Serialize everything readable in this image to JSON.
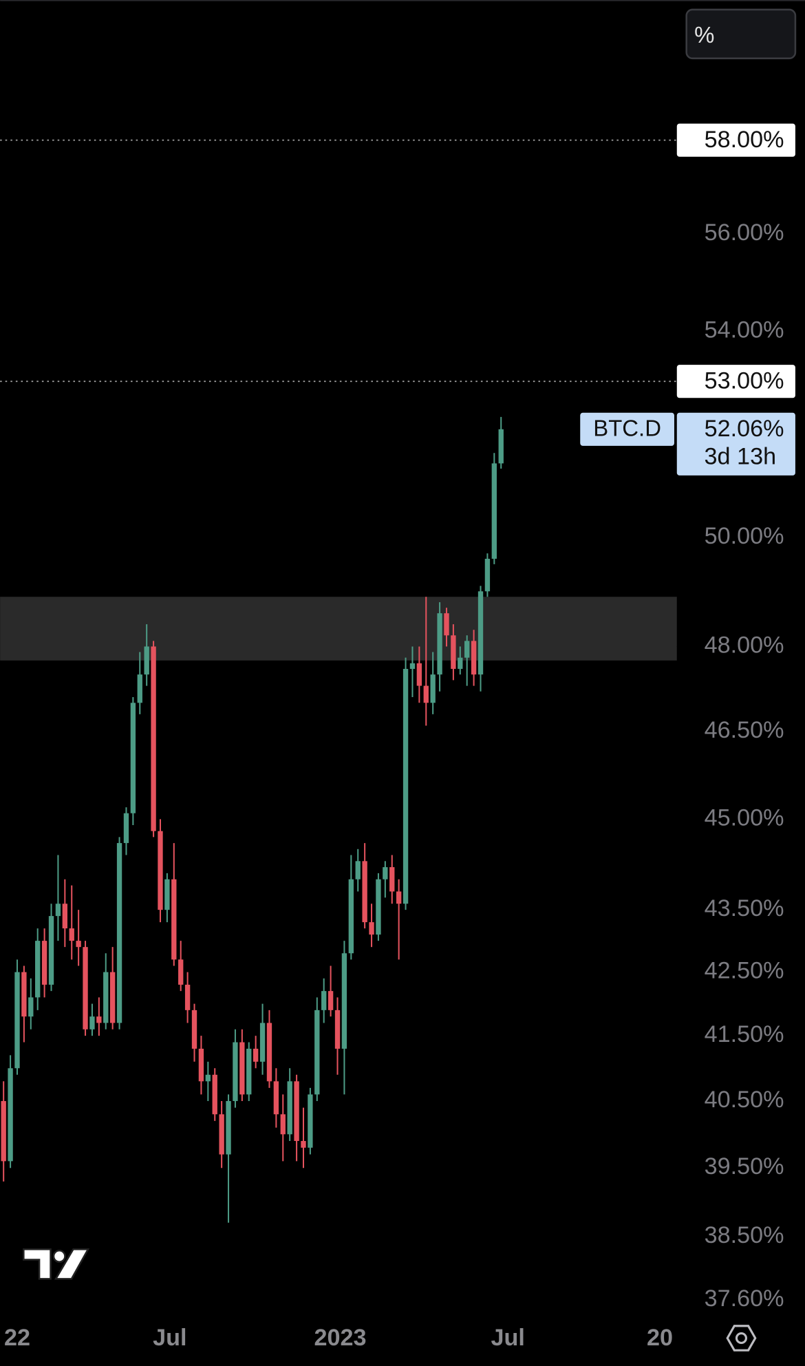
{
  "chart_data": {
    "type": "candlestick",
    "symbol": "BTC.D",
    "up_color": "#4d9c86",
    "down_color": "#e5535e",
    "log": true,
    "ylim": [
      37.32,
      61.12
    ],
    "yticks": [
      {
        "value": 56,
        "label": "56.00%"
      },
      {
        "value": 54,
        "label": "54.00%"
      },
      {
        "value": 50,
        "label": "50.00%"
      },
      {
        "value": 48,
        "label": "48.00%"
      },
      {
        "value": 46.5,
        "label": "46.50%"
      },
      {
        "value": 45,
        "label": "45.00%"
      },
      {
        "value": 43.5,
        "label": "43.50%"
      },
      {
        "value": 42.5,
        "label": "42.50%"
      },
      {
        "value": 41.5,
        "label": "41.50%"
      },
      {
        "value": 40.5,
        "label": "40.50%"
      },
      {
        "value": 39.5,
        "label": "39.50%"
      },
      {
        "value": 38.5,
        "label": "38.50%"
      },
      {
        "value": 37.6,
        "label": "37.60%"
      }
    ],
    "xlim": [
      -0.51,
      98.8
    ],
    "xticks": [
      {
        "value": 2.0,
        "label": "22"
      },
      {
        "value": 24.4,
        "label": "Jul"
      },
      {
        "value": 49.4,
        "label": "2023"
      },
      {
        "value": 74.0,
        "label": "Jul"
      },
      {
        "value": 96.3,
        "label": "20"
      }
    ],
    "levels": [
      {
        "value": 58,
        "label": "58.00%"
      },
      {
        "value": 53,
        "label": "53.00%"
      }
    ],
    "zone": [
      47.75,
      48.9
    ],
    "last_price": {
      "label": "52.06%",
      "countdown": "3d 13h"
    },
    "toolbar_button": "%",
    "open": [
      40.5,
      39.6,
      41.0,
      42.5,
      41.8,
      42.1,
      43.0,
      42.3,
      43.4,
      43.6,
      43.2,
      43.0,
      42.9,
      41.6,
      41.8,
      41.7,
      42.5,
      41.7,
      44.6,
      45.1,
      47.0,
      47.5,
      48.0,
      44.8,
      43.5,
      44.0,
      42.7,
      42.3,
      41.9,
      41.3,
      40.8,
      40.9,
      40.3,
      39.7,
      40.5,
      41.4,
      40.6,
      41.3,
      41.1,
      41.7,
      40.8,
      40.3,
      40.0,
      40.8,
      39.9,
      39.8,
      40.6,
      41.9,
      42.2,
      41.9,
      41.3,
      42.8,
      44.0,
      44.3,
      43.3,
      43.1,
      44.0,
      44.2,
      43.8,
      43.6,
      47.6,
      47.7,
      47.3,
      47.0,
      47.5,
      48.6,
      48.2,
      47.6,
      47.8,
      48.1,
      47.5,
      49.0,
      49.6,
      51.4
    ],
    "high": [
      40.8,
      41.2,
      42.7,
      42.6,
      42.4,
      43.2,
      43.2,
      43.6,
      44.4,
      44.0,
      43.9,
      43.5,
      43.0,
      42.0,
      42.1,
      42.8,
      42.9,
      44.7,
      45.2,
      47.1,
      47.9,
      48.4,
      48.1,
      45.0,
      44.1,
      44.6,
      43.0,
      42.5,
      42.0,
      41.5,
      41.1,
      41.0,
      40.5,
      40.6,
      41.6,
      41.6,
      41.4,
      41.5,
      42.0,
      41.9,
      41.0,
      40.6,
      41.0,
      40.9,
      40.4,
      40.7,
      42.1,
      42.4,
      42.6,
      42.1,
      43.0,
      44.4,
      44.5,
      44.6,
      43.6,
      44.1,
      44.3,
      44.4,
      44.0,
      47.8,
      48.0,
      48.0,
      48.9,
      47.9,
      48.8,
      48.7,
      48.4,
      48.0,
      48.2,
      48.3,
      49.1,
      49.7,
      51.6,
      52.3
    ],
    "low": [
      39.3,
      39.5,
      40.9,
      41.4,
      41.6,
      41.9,
      42.1,
      42.2,
      43.0,
      42.9,
      42.7,
      42.6,
      41.5,
      41.5,
      41.5,
      41.6,
      41.6,
      41.6,
      44.4,
      44.9,
      46.8,
      47.3,
      44.7,
      43.3,
      43.3,
      42.6,
      42.2,
      41.7,
      41.1,
      40.6,
      40.5,
      40.2,
      39.5,
      38.7,
      40.4,
      40.5,
      40.5,
      41.0,
      40.9,
      40.7,
      40.1,
      39.6,
      39.9,
      39.6,
      39.5,
      39.7,
      40.5,
      41.7,
      41.8,
      40.9,
      40.6,
      42.7,
      43.8,
      43.2,
      42.9,
      43.0,
      43.7,
      43.6,
      42.7,
      43.5,
      47.1,
      47.0,
      46.6,
      46.8,
      47.2,
      48.0,
      47.4,
      47.5,
      47.3,
      47.3,
      47.2,
      48.9,
      49.5,
      51.3
    ],
    "close": [
      39.6,
      41.0,
      42.5,
      41.8,
      42.1,
      43.0,
      42.3,
      43.4,
      43.6,
      43.2,
      43.0,
      42.9,
      41.6,
      41.8,
      41.7,
      42.5,
      41.7,
      44.6,
      45.1,
      47.0,
      47.5,
      48.0,
      44.8,
      43.5,
      44.0,
      42.7,
      42.3,
      41.9,
      41.3,
      40.8,
      40.9,
      40.3,
      39.7,
      40.5,
      41.4,
      40.6,
      41.3,
      41.1,
      41.7,
      40.8,
      40.3,
      40.0,
      40.8,
      39.9,
      39.8,
      40.6,
      41.9,
      42.2,
      41.9,
      41.3,
      42.8,
      44.0,
      44.3,
      43.3,
      43.1,
      44.0,
      44.2,
      43.8,
      43.6,
      47.6,
      47.7,
      47.3,
      47.0,
      47.5,
      48.6,
      48.2,
      47.6,
      47.8,
      48.1,
      47.5,
      49.0,
      49.6,
      51.4,
      52.06
    ]
  }
}
